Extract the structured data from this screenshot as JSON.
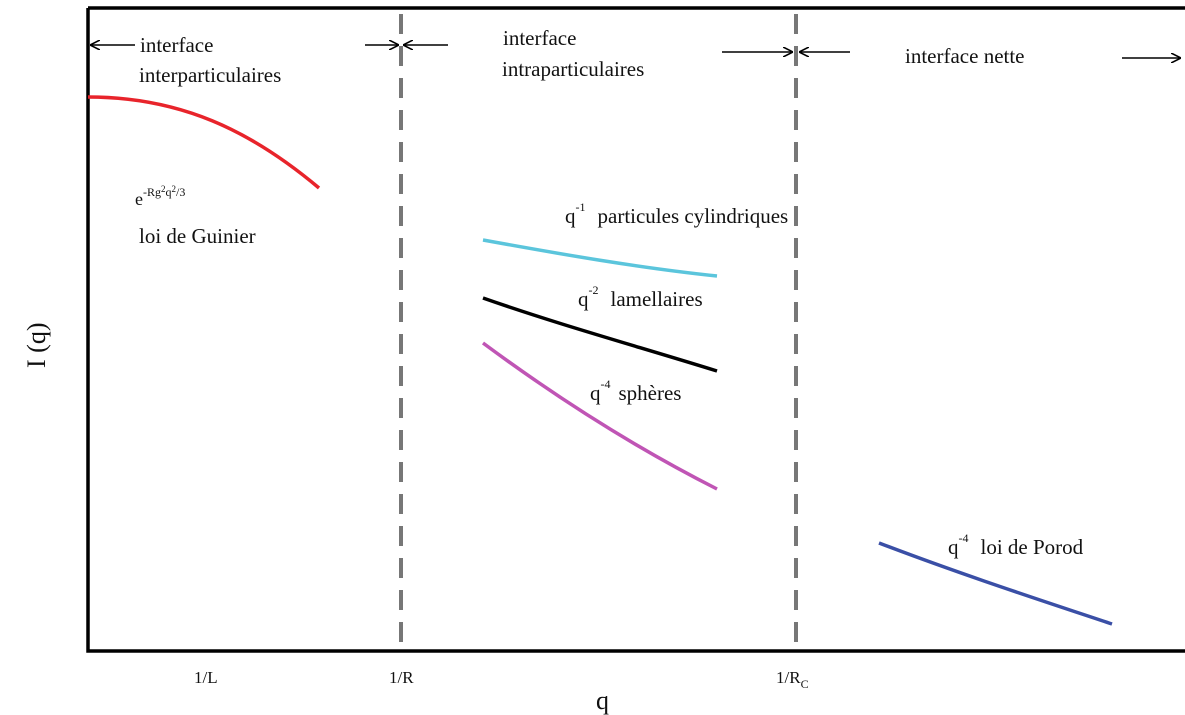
{
  "axes": {
    "ylabel": "I (q)",
    "xlabel": "q",
    "ticks": [
      {
        "label": "1/L"
      },
      {
        "label": "1/R"
      },
      {
        "label": "1/R",
        "sub": "C"
      }
    ]
  },
  "regions": {
    "left": {
      "line1": "interface",
      "line2": "interparticulaires"
    },
    "middle": {
      "line1": "interface",
      "line2": "intraparticulaires"
    },
    "right": {
      "line1": "interface nette"
    }
  },
  "guinier": {
    "base": "e",
    "exponent_a": "-Rg",
    "exponent_b": "2",
    "exponent_c": "q",
    "exponent_d": "2",
    "exponent_e": "/3",
    "label": "loi de Guinier"
  },
  "laws": {
    "cylindrical": {
      "base": "q",
      "exp": "-1",
      "text": "particules cylindriques"
    },
    "lamellar": {
      "base": "q",
      "exp": "-2",
      "text": "lamellaires"
    },
    "spheres": {
      "base": "q",
      "exp": "-4",
      "text": "sphères"
    },
    "porod": {
      "base": "q",
      "exp": "-4",
      "text": "loi de Porod"
    }
  },
  "colors": {
    "frame": "#000000",
    "divider": "#777777",
    "guinier": "#e8242b",
    "cylindrical": "#5bc5dc",
    "lamellar": "#000000",
    "spheres": "#c055b5",
    "porod": "#3a4fa6"
  },
  "arrow_icon": "arrow-icon"
}
